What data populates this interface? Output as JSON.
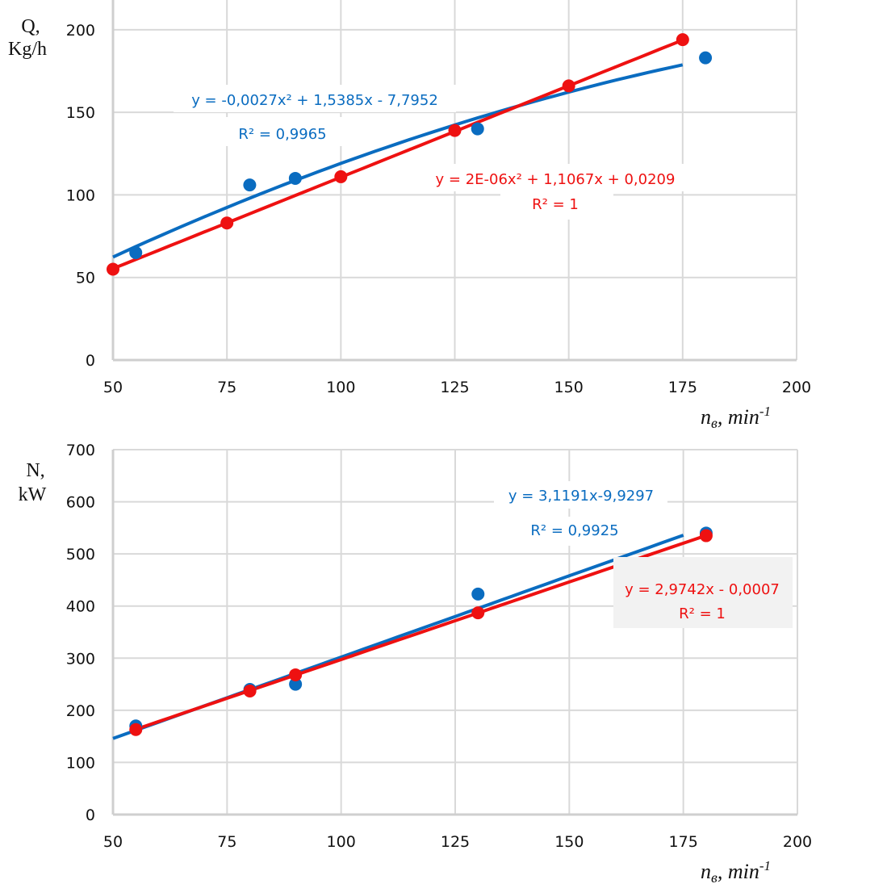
{
  "colors": {
    "blue": "#0a6cc0",
    "red": "#ee1111",
    "grid": "#d9d9d9",
    "label_box": "#f2f2f2"
  },
  "chart_data": [
    {
      "type": "scatter",
      "ylabel_line1": "Q,",
      "ylabel_line2": "Kg/h",
      "xlabel_main": "n",
      "xlabel_sub": "в",
      "xlabel_rest": ", min",
      "xlabel_sup": "-1",
      "xlim": [
        50,
        200
      ],
      "ylim": [
        0,
        218
      ],
      "xticks": [
        "50",
        "75",
        "100",
        "125",
        "150",
        "175",
        "200"
      ],
      "yticks": [
        "0",
        "50",
        "100",
        "150",
        "200"
      ],
      "grid": true,
      "series": [
        {
          "name": "blue",
          "color": "#0a6cc0",
          "x": [
            55,
            80,
            90,
            130,
            180
          ],
          "y": [
            65,
            106,
            110,
            140,
            183
          ],
          "trend": {
            "type": "poly2",
            "coef": [
              -0.0027,
              1.5385,
              -7.7952
            ],
            "range": [
              50,
              175
            ]
          },
          "equation": "y = -0,0027x² + 1,5385x - 7,7952",
          "r2": "R² = 0,9965"
        },
        {
          "name": "red",
          "color": "#ee1111",
          "x": [
            50,
            75,
            100,
            125,
            150,
            175
          ],
          "y": [
            55,
            83,
            111,
            139,
            166,
            194
          ],
          "trend": {
            "type": "poly2",
            "coef": [
              2e-06,
              1.1067,
              0.0209
            ],
            "range": [
              50,
              175
            ]
          },
          "equation": "y = 2E-06x² + 1,1067x + 0,0209",
          "r2": "R² = 1"
        }
      ]
    },
    {
      "type": "scatter",
      "ylabel_line1": "N,",
      "ylabel_line2": "kW",
      "xlabel_main": "n",
      "xlabel_sub": "в",
      "xlabel_rest": ", min",
      "xlabel_sup": "-1",
      "xlim": [
        50,
        200
      ],
      "ylim": [
        0,
        700
      ],
      "xticks": [
        "50",
        "75",
        "100",
        "125",
        "150",
        "175",
        "200"
      ],
      "yticks": [
        "0",
        "100",
        "200",
        "300",
        "400",
        "500",
        "600",
        "700"
      ],
      "grid": true,
      "series": [
        {
          "name": "blue",
          "color": "#0a6cc0",
          "x": [
            55,
            80,
            90,
            130,
            180
          ],
          "y": [
            170,
            240,
            250,
            423,
            540
          ],
          "trend": {
            "type": "poly2",
            "coef": [
              0,
              3.1191,
              -9.9297
            ],
            "range": [
              50,
              175
            ]
          },
          "equation": "y = 3,1191x-9,9297",
          "r2": "R² = 0,9925"
        },
        {
          "name": "red",
          "color": "#ee1111",
          "x": [
            55,
            80,
            90,
            130,
            180
          ],
          "y": [
            163,
            237,
            268,
            387,
            535
          ],
          "trend": {
            "type": "poly2",
            "coef": [
              0,
              2.9742,
              -0.0007
            ],
            "range": [
              55,
              180
            ]
          },
          "equation": "y = 2,9742x - 0,0007",
          "r2": "R² = 1"
        }
      ]
    }
  ]
}
